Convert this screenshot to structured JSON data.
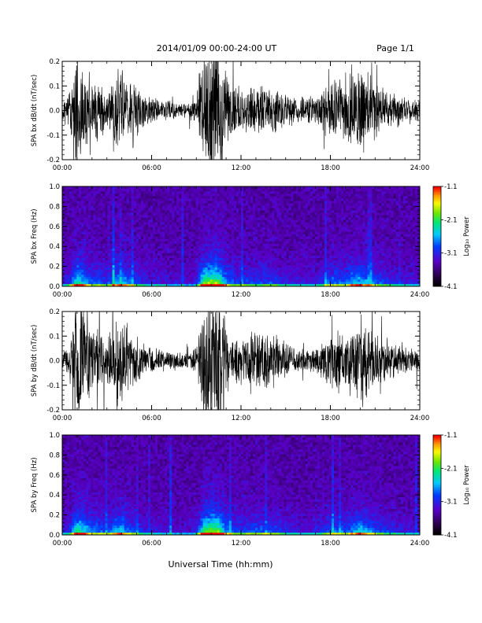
{
  "page": {
    "title": "2014/01/09  00:00-24:00 UT",
    "page_label": "Page 1/1",
    "x_axis_label": "Universal Time (hh:mm)"
  },
  "chart_data": [
    {
      "type": "line",
      "ylabel": "SPA bx dB/dt (nT/sec)",
      "xlim": [
        0,
        24
      ],
      "ylim": [
        -0.2,
        0.2
      ],
      "x_ticks": [
        "00:00",
        "06:00",
        "12:00",
        "18:00",
        "24:00"
      ],
      "y_ticks": [
        "-0.2",
        "-0.1",
        "0.0",
        "0.1",
        "0.2"
      ],
      "activity_profile": {
        "x_hours": [
          0,
          0.5,
          1,
          1.5,
          2,
          2.5,
          3,
          3.5,
          4,
          4.5,
          5,
          5.5,
          6,
          7,
          8,
          8.5,
          9,
          9.5,
          10,
          10.5,
          11,
          11.5,
          12,
          13,
          14,
          15,
          16,
          16.5,
          17,
          17.5,
          18,
          18.5,
          19,
          19.5,
          20,
          20.5,
          21,
          22,
          23,
          24
        ],
        "amplitude": [
          0.04,
          0.08,
          0.22,
          0.16,
          0.1,
          0.12,
          0.07,
          0.14,
          0.18,
          0.12,
          0.09,
          0.06,
          0.05,
          0.04,
          0.03,
          0.03,
          0.05,
          0.25,
          0.28,
          0.26,
          0.14,
          0.09,
          0.08,
          0.09,
          0.09,
          0.06,
          0.05,
          0.05,
          0.05,
          0.08,
          0.12,
          0.12,
          0.1,
          0.16,
          0.17,
          0.14,
          0.11,
          0.07,
          0.05,
          0.04
        ]
      }
    },
    {
      "type": "heatmap",
      "ylabel": "SPA bx Freq (Hz)",
      "xlim": [
        0,
        24
      ],
      "ylim": [
        0.0,
        1.0
      ],
      "x_ticks": [
        "00:00",
        "06:00",
        "12:00",
        "18:00",
        "24:00"
      ],
      "y_ticks": [
        "0.0",
        "0.2",
        "0.4",
        "0.6",
        "0.8",
        "1.0"
      ],
      "colorbar": {
        "label": "Log₁₀ Power",
        "range": [
          -4.1,
          -1.1
        ],
        "ticks": [
          "-1.1",
          "-2.1",
          "-3.1",
          "-4.1"
        ]
      }
    },
    {
      "type": "line",
      "ylabel": "SPA by dB/dt (nT/sec)",
      "xlim": [
        0,
        24
      ],
      "ylim": [
        -0.2,
        0.2
      ],
      "x_ticks": [
        "00:00",
        "06:00",
        "12:00",
        "18:00",
        "24:00"
      ],
      "y_ticks": [
        "-0.2",
        "-0.1",
        "0.0",
        "0.1",
        "0.2"
      ],
      "activity_profile": {
        "x_hours": [
          0,
          0.5,
          1,
          1.5,
          2,
          2.5,
          3,
          3.5,
          4,
          4.5,
          5,
          5.5,
          6,
          7,
          8,
          8.5,
          9,
          9.5,
          10,
          10.5,
          11,
          11.5,
          12,
          13,
          14,
          15,
          16,
          16.5,
          17,
          17.5,
          18,
          18.5,
          19,
          19.5,
          20,
          20.5,
          21,
          22,
          23,
          24
        ],
        "amplitude": [
          0.04,
          0.07,
          0.22,
          0.18,
          0.12,
          0.12,
          0.08,
          0.15,
          0.17,
          0.12,
          0.09,
          0.06,
          0.05,
          0.04,
          0.03,
          0.03,
          0.05,
          0.25,
          0.28,
          0.26,
          0.14,
          0.1,
          0.09,
          0.11,
          0.1,
          0.07,
          0.04,
          0.04,
          0.05,
          0.08,
          0.1,
          0.12,
          0.1,
          0.14,
          0.17,
          0.14,
          0.11,
          0.07,
          0.05,
          0.04
        ]
      }
    },
    {
      "type": "heatmap",
      "ylabel": "SPA by Freq (Hz)",
      "xlim": [
        0,
        24
      ],
      "ylim": [
        0.0,
        1.0
      ],
      "x_ticks": [
        "00:00",
        "06:00",
        "12:00",
        "18:00",
        "24:00"
      ],
      "y_ticks": [
        "0.0",
        "0.2",
        "0.4",
        "0.6",
        "0.8",
        "1.0"
      ],
      "colorbar": {
        "label": "Log₁₀ Power",
        "range": [
          -4.1,
          -1.1
        ],
        "ticks": [
          "-1.1",
          "-2.1",
          "-3.1",
          "-4.1"
        ]
      }
    }
  ]
}
